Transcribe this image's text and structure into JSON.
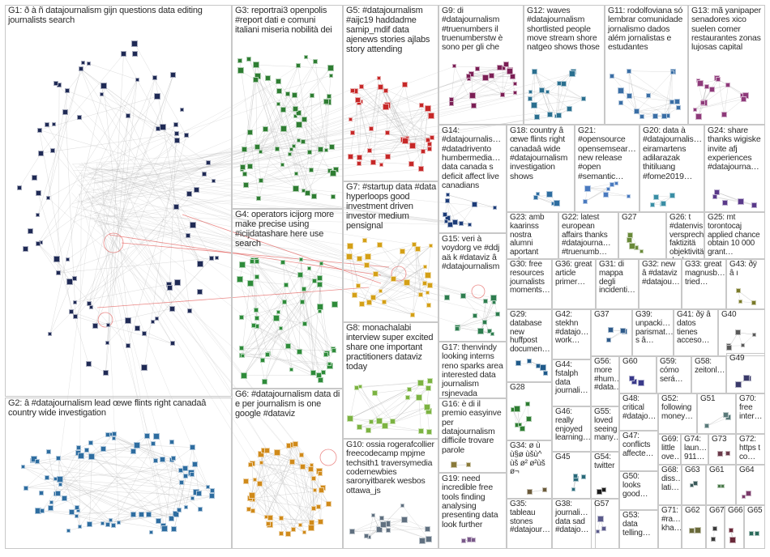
{
  "graph": {
    "groups": [
      {
        "id": "G1",
        "label": "G1: ð à ñ datajournalism gijn questions data editing journalists search"
      },
      {
        "id": "G2",
        "label": "G2: â #datajournalism lead œwe flints right canadaâ country wide investigation"
      },
      {
        "id": "G3",
        "label": "G3: reportrai3 openpolis #report dati e comuni italiani miseria nobilità dei"
      },
      {
        "id": "G4",
        "label": "G4: operators icijorg more make precise using #icijdatashare here use search"
      },
      {
        "id": "G5",
        "label": "G5: #datajournalism #aijc19 haddadme samip_mdif data ajenews stories ajlabs story attending"
      },
      {
        "id": "G6",
        "label": "G6: #datajournalism data di e per journalism is one google #dataviz"
      },
      {
        "id": "G7",
        "label": "G7: #startup data #data hyperloops good investment driven investor medium pensignal"
      },
      {
        "id": "G8",
        "label": "G8: monachalabi interview super excited share one important practitioners dataviz today"
      },
      {
        "id": "G9",
        "label": "G9: di #datajournalism #truenumbers il truenumberstw è sono per gli che"
      },
      {
        "id": "G10",
        "label": "G10: ossia rogerafcollier freecodecamp mpjme techsith1 traversymedia codernewbies saronyitbarek wesbos ottawa_js"
      },
      {
        "id": "G11",
        "label": "G11: rodolfoviana só lembrar comunidade jornalismo dados além jornalistas e estudantes"
      },
      {
        "id": "G12",
        "label": "G12: waves #datajournalism shortlisted people move stream shore natgeo shows those"
      },
      {
        "id": "G13",
        "label": "G13: mã yanipaper senadores xico suelen comer restaurantes zonas lujosas capital"
      },
      {
        "id": "G14",
        "label": "G14: #datajournalis… #datadrivento humbermedia… data canada s deficit affect live canadians"
      },
      {
        "id": "G15",
        "label": "G15: veri à voydorg ve #ddj aä k #dataviz â #datajournalism"
      },
      {
        "id": "G16",
        "label": "G16: è di il premio easyinve per datajournalism difficile trovare parole"
      },
      {
        "id": "G17",
        "label": "G17: thenvindy looking interns reno sparks area interested data journalism rsjnevada"
      },
      {
        "id": "G18",
        "label": "G18: country â œwe flints right canadaâ wide #datajournalism investigation shows"
      },
      {
        "id": "G19",
        "label": "G19: need incredible free tools finding analysing presenting data look further"
      },
      {
        "id": "G20",
        "label": "G20: data à #datajournalis… eiramartens adilarazak thitiluang #fome2019…"
      },
      {
        "id": "G21",
        "label": "G21: #opensource opensemsear… new release #open #semantic…"
      },
      {
        "id": "G22",
        "label": "G22: latest european affairs thanks #datajourna… #truenumb…"
      },
      {
        "id": "G23",
        "label": "G23: amb kaarinss nostra alumni aportant valor…"
      },
      {
        "id": "G24",
        "label": "G24: share thanks wigiske invite afj experiences #datajourna…"
      },
      {
        "id": "G25",
        "label": "G25: mt torontocaj applied chance obtain 10 000 grant…"
      },
      {
        "id": "G26",
        "label": "G26: t #datenvis… versprech… faktizitä objektivitä doch…"
      },
      {
        "id": "G27",
        "label": "G27"
      },
      {
        "id": "G28",
        "label": "G28"
      },
      {
        "id": "G29",
        "label": "G29: database new huffpost documen…"
      },
      {
        "id": "G30",
        "label": "G30: free resources journalists moments…"
      },
      {
        "id": "G31",
        "label": "G31: di mappa degli incidenti…"
      },
      {
        "id": "G32",
        "label": "G32: new â #dataviz #datajou…"
      },
      {
        "id": "G33",
        "label": "G33: great magnusb… tried…"
      },
      {
        "id": "G34",
        "label": "G34: ø ù ù§ø ùšù^ ùš ø² ø²ùš ø¬"
      },
      {
        "id": "G35",
        "label": "G35: tableau stones #datajour…"
      },
      {
        "id": "G36",
        "label": "G36: great article primer…"
      },
      {
        "id": "G37",
        "label": "G37"
      },
      {
        "id": "G38",
        "label": "G38: journali… data sad #datajo…"
      },
      {
        "id": "G39",
        "label": "G39: unpacki… parismat… s â…"
      },
      {
        "id": "G40",
        "label": "G40"
      },
      {
        "id": "G41",
        "label": "G41: ðÿ â datos tienes acceso…"
      },
      {
        "id": "G42",
        "label": "G42: stekhn #datajo… work…"
      },
      {
        "id": "G43",
        "label": "G43: ðÿ â ı"
      },
      {
        "id": "G44",
        "label": "G44: fstalph data journali…"
      },
      {
        "id": "G45",
        "label": "G45"
      },
      {
        "id": "G46",
        "label": "G46: really enjoyed learning…"
      },
      {
        "id": "G47",
        "label": "G47: conflicts affecte…"
      },
      {
        "id": "G48",
        "label": "G48: critical #datajo…"
      },
      {
        "id": "G49",
        "label": "G49"
      },
      {
        "id": "G50",
        "label": "G50: looks good…"
      },
      {
        "id": "G51",
        "label": "G51"
      },
      {
        "id": "G52",
        "label": "G52: following money…"
      },
      {
        "id": "G53",
        "label": "G53: data telling…"
      },
      {
        "id": "G54",
        "label": "G54: twitter"
      },
      {
        "id": "G55",
        "label": "G55: loved seeing many…"
      },
      {
        "id": "G56",
        "label": "G56: more #hum… #data…"
      },
      {
        "id": "G57",
        "label": "G57"
      },
      {
        "id": "G58",
        "label": "G58: zeitonl…"
      },
      {
        "id": "G59",
        "label": "G59: cómo será…"
      },
      {
        "id": "G60",
        "label": "G60"
      },
      {
        "id": "G61",
        "label": "G61"
      },
      {
        "id": "G62",
        "label": "G62"
      },
      {
        "id": "G63",
        "label": "G63"
      },
      {
        "id": "G64",
        "label": "G64"
      },
      {
        "id": "G65",
        "label": "G65"
      },
      {
        "id": "G66",
        "label": "G66"
      },
      {
        "id": "G67",
        "label": "G67"
      },
      {
        "id": "G68",
        "label": "G68: diss… lati…"
      },
      {
        "id": "G69",
        "label": "G69: little ove…"
      },
      {
        "id": "G70",
        "label": "G70: free inter…"
      },
      {
        "id": "G71",
        "label": "G71: #ra… kha…"
      },
      {
        "id": "G72",
        "label": "G72: https t co…"
      },
      {
        "id": "G73",
        "label": "G73"
      },
      {
        "id": "G74",
        "label": "G74: laun… 911…"
      }
    ],
    "colors": {
      "border": "#c8c8c8",
      "edge": "#b0b0b0",
      "edge_highlight": "#e0403c",
      "label": "#2b2b2b",
      "background": "#ffffff"
    }
  }
}
